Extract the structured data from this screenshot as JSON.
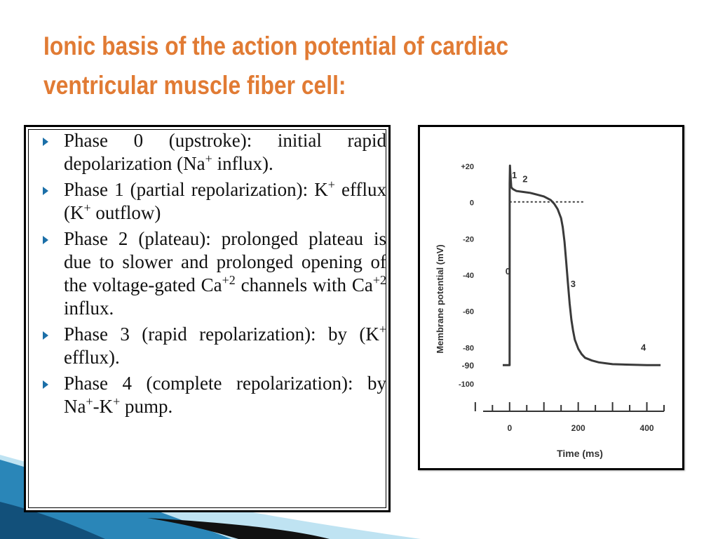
{
  "slide": {
    "title_line1": "Ionic basis of the action potential of cardiac",
    "title_line2": "ventricular muscle fiber cell:",
    "colors": {
      "title": "#e17b34",
      "bullet": "#1b6fa8",
      "wave_dark": "#12507a",
      "wave_mid": "#2a86b8",
      "wave_light": "#bfe3f2"
    }
  },
  "bullets": [
    {
      "pre": "Phase 0 (upstroke): initial rapid depolarization (Na",
      "s1": "+",
      "mid": " influx).",
      "s2": "",
      "post": ""
    },
    {
      "pre": "Phase 1 (partial repolarization): K",
      "s1": "+",
      "mid": " efflux (K",
      "s2": "+",
      "post": " outflow)"
    },
    {
      "pre": "Phase 2 (plateau): prolonged plateau is due to slower and prolonged opening of the voltage-gated Ca",
      "s1": "+2",
      "mid": " channels with Ca",
      "s2": "+2",
      "post": " influx."
    },
    {
      "pre": "Phase 3 (rapid repolarization): by (K",
      "s1": "+",
      "mid": " efflux).",
      "s2": "",
      "post": ""
    },
    {
      "pre": "Phase 4 (complete repolarization): by Na",
      "s1": "+",
      "mid": "-K",
      "s2": "+",
      "post": " pump."
    }
  ],
  "chart_data": {
    "type": "line",
    "title": "",
    "xlabel": "Time (ms)",
    "ylabel": "Membrane potential (mV)",
    "xlim": [
      -20,
      450
    ],
    "ylim": [
      -100,
      20
    ],
    "x_ticks": [
      0,
      200,
      400
    ],
    "x_tick_labels": [
      "0",
      "200",
      "400"
    ],
    "y_ticks": [
      20,
      0,
      -20,
      -40,
      -60,
      -80,
      -90,
      -100
    ],
    "y_tick_labels": [
      "+20",
      "0",
      "-20",
      "-40",
      "-60",
      "-80",
      "-90",
      "-100"
    ],
    "reference_line": {
      "y": 0,
      "style": "dotted"
    },
    "grid": false,
    "series": [
      {
        "x": [
          -20,
          0,
          0.2,
          1,
          2,
          5,
          10,
          20,
          40,
          60,
          80,
          100,
          120,
          130,
          140,
          150,
          155,
          160,
          165,
          170,
          175,
          180,
          185,
          190,
          200,
          210,
          220,
          240,
          260,
          280,
          300,
          350,
          400,
          440
        ],
        "y": [
          -90,
          -90,
          10,
          20,
          16,
          8,
          7,
          6,
          5.5,
          5,
          4,
          3,
          1,
          -1,
          -4,
          -9,
          -14,
          -22,
          -33,
          -45,
          -56,
          -65,
          -71,
          -76,
          -81,
          -84,
          -86,
          -87.5,
          -88.5,
          -89,
          -89.5,
          -89.8,
          -90,
          -90
        ]
      }
    ],
    "phase_labels": [
      {
        "text": "0",
        "x": -5,
        "y": -40
      },
      {
        "text": "1",
        "x": 14,
        "y": 13
      },
      {
        "text": "2",
        "x": 45,
        "y": 11
      },
      {
        "text": "3",
        "x": 185,
        "y": -47
      },
      {
        "text": "4",
        "x": 390,
        "y": -82
      }
    ]
  }
}
